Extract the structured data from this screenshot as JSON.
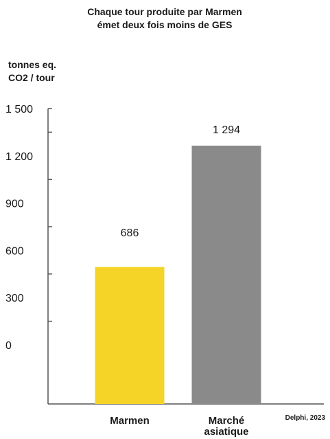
{
  "chart_data": {
    "type": "bar",
    "title_lines": [
      "Chaque tour produite par Marmen",
      "émet deux fois moins de GES"
    ],
    "ylabel_lines": [
      "tonnes eq.",
      "CO2 / tour"
    ],
    "categories": [
      {
        "lines": [
          "Marmen"
        ]
      },
      {
        "lines": [
          "Marché",
          "asiatique"
        ]
      }
    ],
    "values": [
      686,
      1294
    ],
    "value_labels": [
      "686",
      "1 294"
    ],
    "colors": [
      "#f5d327",
      "#8a8a8a"
    ],
    "y_ticks": [
      0,
      300,
      600,
      900,
      1200,
      1500
    ],
    "y_tick_labels": [
      "0",
      "300",
      "600",
      "900",
      "1 200",
      "1 500"
    ],
    "ylim": [
      0,
      1500
    ],
    "source": "Delphi, 2023",
    "grid": false,
    "legend": "none"
  }
}
